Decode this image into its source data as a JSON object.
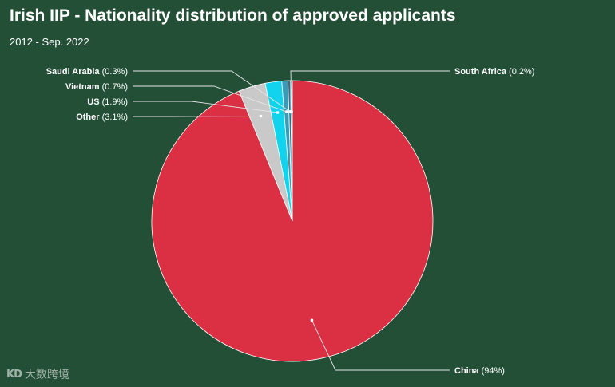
{
  "chart_data": {
    "type": "pie",
    "title": "Irish IIP - Nationality distribution of approved applicants",
    "subtitle": "2012 - Sep. 2022",
    "slices": [
      {
        "name": "China",
        "value": 94,
        "label_value": "(94%)",
        "color": "#db3044"
      },
      {
        "name": "Other",
        "value": 3.1,
        "label_value": "(3.1%)",
        "color": "#c9c9c9"
      },
      {
        "name": "US",
        "value": 1.9,
        "label_value": "(1.9%)",
        "color": "#11d3ee"
      },
      {
        "name": "Vietnam",
        "value": 0.7,
        "label_value": "(0.7%)",
        "color": "#3a9bb8"
      },
      {
        "name": "Saudi Arabia",
        "value": 0.3,
        "label_value": "(0.3%)",
        "color": "#2e6f8a"
      },
      {
        "name": "South Africa",
        "value": 0.2,
        "label_value": "(0.2%)",
        "color": "#1b2d40"
      }
    ]
  },
  "watermark": {
    "text": "大数跨境",
    "mark": "KD"
  }
}
